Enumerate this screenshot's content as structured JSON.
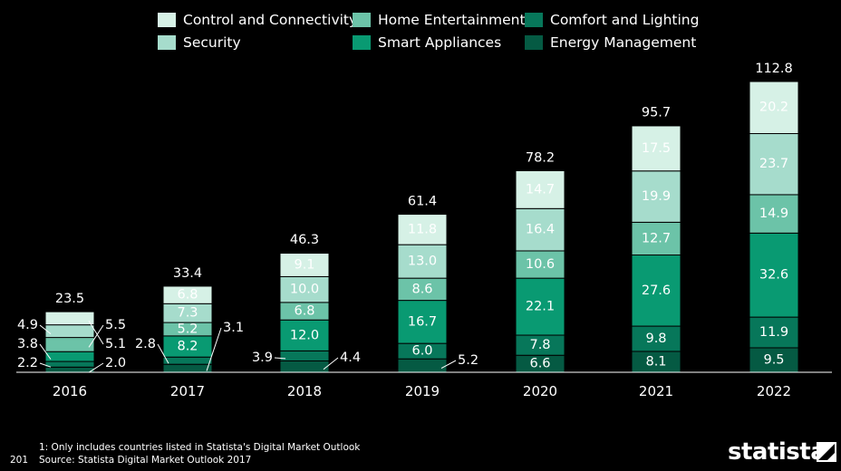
{
  "page_number": "201",
  "footnotes": {
    "note1": "1: Only includes countries listed in Statista's Digital Market Outlook",
    "source": "Source: Statista Digital Market Outlook 2017"
  },
  "brand": {
    "name": "statista"
  },
  "colors": {
    "background": "#000000",
    "control_and_connectivity": "#d6f1e6",
    "security": "#a6dccc",
    "home_entertainment": "#6cc3a8",
    "smart_appliances": "#099a72",
    "comfort_and_lighting": "#07775a",
    "energy_management": "#055a43",
    "axis": "#ffffff",
    "text": "#ffffff"
  },
  "chart_data": {
    "type": "bar",
    "stacked": true,
    "categories": [
      "2016",
      "2017",
      "2018",
      "2019",
      "2020",
      "2021",
      "2022"
    ],
    "totals": [
      23.5,
      33.4,
      46.3,
      61.4,
      78.2,
      95.7,
      112.8
    ],
    "series": [
      {
        "name": "Energy Management",
        "values": [
          2.0,
          3.1,
          4.4,
          5.2,
          6.6,
          8.1,
          9.5
        ]
      },
      {
        "name": "Comfort and Lighting",
        "values": [
          2.2,
          2.8,
          3.9,
          6.0,
          7.8,
          9.8,
          11.9
        ]
      },
      {
        "name": "Smart Appliances",
        "values": [
          3.8,
          8.2,
          12.0,
          16.7,
          22.1,
          27.6,
          32.6
        ]
      },
      {
        "name": "Home Entertainment",
        "values": [
          5.5,
          5.2,
          6.8,
          8.6,
          10.6,
          12.7,
          14.9
        ]
      },
      {
        "name": "Security",
        "values": [
          4.9,
          7.3,
          10.0,
          13.0,
          16.4,
          19.9,
          23.7
        ]
      },
      {
        "name": "Control and Connectivity",
        "values": [
          5.1,
          6.8,
          9.1,
          11.8,
          14.7,
          17.5,
          20.2
        ]
      }
    ],
    "ylim": [
      0,
      112.8
    ],
    "grid": false,
    "legend_position": "top",
    "legend_order": [
      "Control and Connectivity",
      "Home Entertainment",
      "Comfort and Lighting",
      "Security",
      "Smart Appliances",
      "Energy Management"
    ]
  }
}
